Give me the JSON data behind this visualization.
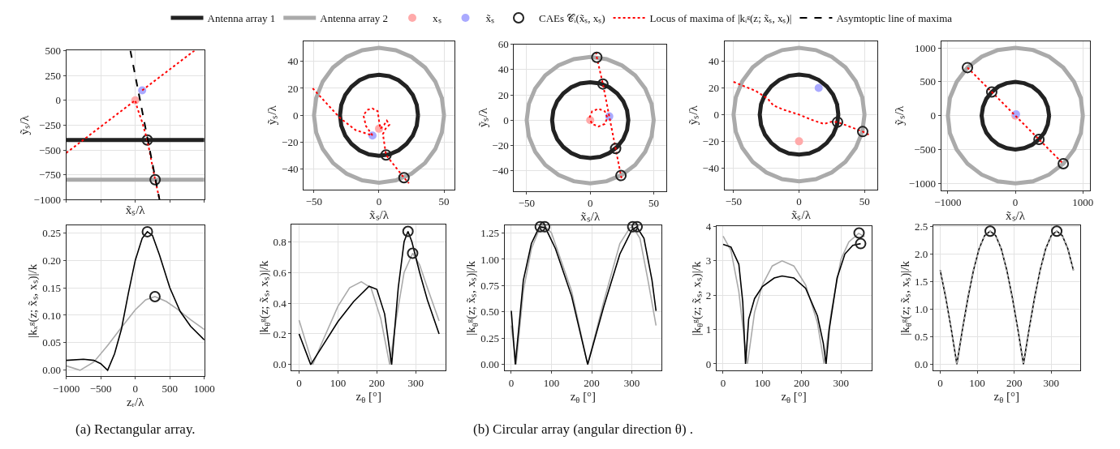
{
  "chart_data": [
    {
      "type": "line",
      "xlabel": "x̃ₛ/λ",
      "ylabel": "ỹₛ/λ",
      "xlim": [
        -1000,
        1000
      ],
      "ylim": [
        -1000,
        500
      ],
      "xticks": [
        {
          "value": -1000,
          "label": null
        },
        {
          "value": -500,
          "label": null
        },
        {
          "value": 0,
          "label": null
        },
        {
          "value": 500,
          "label": null
        },
        {
          "value": 1000,
          "label": null
        }
      ],
      "yticks": [
        -1000,
        -750,
        -500,
        -250,
        0,
        250,
        500
      ],
      "tick_labels": "y",
      "grid": true,
      "legend": "top",
      "series": [
        {
          "name": "Antenna array 1",
          "color": "#222222",
          "x": [
            -1000,
            1000
          ],
          "values": [
            -400,
            -400
          ]
        },
        {
          "name": "Antenna array 2",
          "color": "#aaaaaa",
          "x": [
            -1000,
            1000
          ],
          "values": [
            -800,
            -800
          ]
        },
        {
          "name": "xₛ",
          "type": "scatter",
          "marker": "circle",
          "color": "#ffaaaa",
          "x": [
            0
          ],
          "values": [
            0
          ]
        },
        {
          "name": "x̃ₛ",
          "type": "scatter",
          "marker": "circle",
          "color": "#aaaaff",
          "x": [
            100
          ],
          "values": [
            100
          ]
        },
        {
          "name": "CAEs 𝒞ᵢ(x̃ₛ, xₛ)",
          "type": "scatter",
          "marker": "circle",
          "color": "#222222",
          "x": [
            174,
            288
          ],
          "values": [
            -400,
            -800
          ]
        },
        {
          "name": "Locus of maxima of |kᵢᵍ(z; x̃ₛ, xₛ)|",
          "line_style": "dotted",
          "color": "#ff0000",
          "x": [
            -1000,
            0,
            30,
            100,
            174,
            288,
            351,
            null,
            100,
            856
          ],
          "values": [
            -530,
            0,
            -80,
            -220,
            -400,
            -800,
            -1000,
            null,
            100,
            500
          ]
        },
        {
          "name": "Asymtoptic line of maxima",
          "line_style": "dashed",
          "color": "#000000",
          "x": [
            -71,
            351
          ],
          "values": [
            500,
            -1000
          ]
        }
      ]
    },
    {
      "type": "line",
      "xlabel": "x̃ₛ/λ",
      "ylabel": "ỹₛ/λ",
      "xlim": [
        -58,
        58
      ],
      "ylim": [
        -55,
        55
      ],
      "xticks": [
        -50,
        0,
        50
      ],
      "yticks": [
        -40,
        -20,
        0,
        20,
        40
      ],
      "grid": true,
      "series": [
        {
          "color": "#aaaaaa",
          "x": [
            50,
            48.3,
            43.3,
            35.4,
            25,
            12.9,
            0,
            -12.9,
            -25,
            -35.4,
            -43.3,
            -48.3,
            -50,
            -48.3,
            -43.3,
            -35.4,
            -25,
            -12.9,
            0,
            12.9,
            25,
            35.4,
            43.3,
            48.3,
            50
          ],
          "values": [
            0,
            12.9,
            25,
            35.4,
            43.3,
            48.3,
            50,
            48.3,
            43.3,
            35.4,
            25,
            12.9,
            0,
            -12.9,
            -25,
            -35.4,
            -43.3,
            -48.3,
            -50,
            -48.3,
            -43.3,
            -35.4,
            -25,
            -12.9,
            0
          ]
        },
        {
          "color": "#222222",
          "x": [
            30,
            29,
            26,
            21.2,
            15,
            7.8,
            0,
            -7.8,
            -15,
            -21.2,
            -26,
            -29,
            -30,
            -29,
            -26,
            -21.2,
            -15,
            -7.8,
            0,
            7.8,
            15,
            21.2,
            26,
            29,
            30
          ],
          "values": [
            0,
            7.8,
            15,
            21.2,
            26,
            29,
            30,
            29,
            26,
            21.2,
            15,
            7.8,
            0,
            -7.8,
            -15,
            -21.2,
            -26,
            -29,
            -30,
            -29,
            -26,
            -21.2,
            -15,
            -7.8,
            0
          ]
        },
        {
          "type": "scatter",
          "marker": "circle",
          "color": "#ffaaaa",
          "x": [
            0
          ],
          "values": [
            -10
          ]
        },
        {
          "type": "scatter",
          "marker": "circle",
          "color": "#aaaaff",
          "x": [
            -5
          ],
          "values": [
            -15
          ]
        },
        {
          "line_style": "dotted",
          "color": "#ff0000",
          "x": [
            -51,
            -30,
            -18,
            -5,
            -10,
            -12,
            -9,
            -5,
            -1,
            0,
            1,
            4,
            6,
            8,
            5,
            3,
            5.4,
            19.2,
            23
          ],
          "values": [
            20,
            -2,
            -11,
            -15,
            -8,
            0,
            4,
            5,
            3,
            -4,
            -10,
            -7,
            -4,
            -7,
            -10,
            -14,
            -29.5,
            -46.3,
            -50.5
          ]
        },
        {
          "type": "scatter",
          "marker": "circle",
          "color": "#222222",
          "x": [
            5.4,
            19.2
          ],
          "values": [
            -29.5,
            -46.3
          ]
        }
      ]
    },
    {
      "type": "line",
      "xlabel": "x̃ₛ/λ",
      "ylabel": "ỹₛ/λ",
      "xlim": [
        -60,
        60
      ],
      "ylim": [
        -56,
        60
      ],
      "xticks": [
        -50,
        0,
        50
      ],
      "yticks": [
        -40,
        -20,
        0,
        20,
        40,
        60
      ],
      "grid": true,
      "series": [
        {
          "color": "#aaaaaa",
          "x": [
            50,
            48.3,
            43.3,
            35.4,
            25,
            12.9,
            0,
            -12.9,
            -25,
            -35.4,
            -43.3,
            -48.3,
            -50,
            -48.3,
            -43.3,
            -35.4,
            -25,
            -12.9,
            0,
            12.9,
            25,
            35.4,
            43.3,
            48.3,
            50
          ],
          "values": [
            0,
            12.9,
            25,
            35.4,
            43.3,
            48.3,
            50,
            48.3,
            43.3,
            35.4,
            25,
            12.9,
            0,
            -12.9,
            -25,
            -35.4,
            -43.3,
            -48.3,
            -50,
            -48.3,
            -43.3,
            -35.4,
            -25,
            -12.9,
            0
          ]
        },
        {
          "color": "#222222",
          "x": [
            30,
            29,
            26,
            21.2,
            15,
            7.8,
            0,
            -7.8,
            -15,
            -21.2,
            -26,
            -29,
            -30,
            -29,
            -26,
            -21.2,
            -15,
            -7.8,
            0,
            7.8,
            15,
            21.2,
            26,
            29,
            30
          ],
          "values": [
            0,
            7.8,
            15,
            21.2,
            26,
            29,
            30,
            29,
            26,
            21.2,
            15,
            7.8,
            0,
            -7.8,
            -15,
            -21.2,
            -26,
            -29,
            -30,
            -29,
            -26,
            -21.2,
            -15,
            -7.8,
            0
          ]
        },
        {
          "type": "scatter",
          "marker": "circle",
          "color": "#ffaaaa",
          "x": [
            0
          ],
          "values": [
            0
          ]
        },
        {
          "type": "scatter",
          "marker": "circle",
          "color": "#aaaaff",
          "x": [
            15
          ],
          "values": [
            3
          ]
        },
        {
          "line_style": "dotted",
          "color": "#ff0000",
          "x": [
            4.5,
            5.2,
            10,
            15,
            20,
            24.2,
            25,
            null,
            -0.5,
            1.5,
            6.5,
            11.5,
            13.5,
            11.5,
            6.5,
            1.5,
            0
          ],
          "values": [
            54,
            49.7,
            28.6,
            3,
            -22.4,
            -43.8,
            -47.4,
            null,
            2,
            7,
            9,
            7,
            2,
            -3,
            -5,
            -3,
            0
          ]
        },
        {
          "type": "scatter",
          "marker": "circle",
          "color": "#222222",
          "x": [
            5.2,
            10,
            20,
            24.2
          ],
          "values": [
            49.7,
            28.6,
            -22.4,
            -43.8
          ]
        }
      ]
    },
    {
      "type": "line",
      "xlabel": "x̃ₛ/λ",
      "ylabel": "ỹₛ/λ",
      "xlim": [
        -57,
        60
      ],
      "ylim": [
        -56,
        55
      ],
      "xticks": [
        -50,
        0,
        50
      ],
      "yticks": [
        -40,
        -20,
        0,
        20,
        40
      ],
      "grid": true,
      "series": [
        {
          "color": "#aaaaaa",
          "x": [
            50,
            48.3,
            43.3,
            35.4,
            25,
            12.9,
            0,
            -12.9,
            -25,
            -35.4,
            -43.3,
            -48.3,
            -50,
            -48.3,
            -43.3,
            -35.4,
            -25,
            -12.9,
            0,
            12.9,
            25,
            35.4,
            43.3,
            48.3,
            50
          ],
          "values": [
            0,
            12.9,
            25,
            35.4,
            43.3,
            48.3,
            50,
            48.3,
            43.3,
            35.4,
            25,
            12.9,
            0,
            -12.9,
            -25,
            -35.4,
            -43.3,
            -48.3,
            -50,
            -48.3,
            -43.3,
            -35.4,
            -25,
            -12.9,
            0
          ]
        },
        {
          "color": "#222222",
          "x": [
            30,
            29,
            26,
            21.2,
            15,
            7.8,
            0,
            -7.8,
            -15,
            -21.2,
            -26,
            -29,
            -30,
            -29,
            -26,
            -21.2,
            -15,
            -7.8,
            0,
            7.8,
            15,
            21.2,
            26,
            29,
            30
          ],
          "values": [
            0,
            7.8,
            15,
            21.2,
            26,
            29,
            30,
            29,
            26,
            21.2,
            15,
            7.8,
            0,
            -7.8,
            -15,
            -21.2,
            -26,
            -29,
            -30,
            -29,
            -26,
            -21.2,
            -15,
            -7.8,
            0
          ]
        },
        {
          "type": "scatter",
          "marker": "circle",
          "color": "#ffaaaa",
          "x": [
            0
          ],
          "values": [
            -20
          ]
        },
        {
          "type": "scatter",
          "marker": "circle",
          "color": "#aaaaff",
          "x": [
            15
          ],
          "values": [
            20
          ]
        },
        {
          "line_style": "dotted",
          "color": "#ff0000",
          "x": [
            -50,
            -33,
            -24,
            -19.5,
            -11.8,
            0,
            10,
            19,
            25,
            29.4,
            48.6,
            53.6
          ],
          "values": [
            24.5,
            17.7,
            12,
            6.8,
            3.7,
            0,
            -4,
            -7,
            -5.3,
            -5.6,
            -12.7,
            -15.2
          ]
        },
        {
          "type": "scatter",
          "marker": "circle",
          "color": "#222222",
          "x": [
            29.4,
            48.6
          ],
          "values": [
            -5.6,
            -12.7
          ]
        }
      ]
    },
    {
      "type": "line",
      "xlabel": "x̃ₛ/λ",
      "ylabel": "ỹₛ/λ",
      "xlim": [
        -1100,
        1100
      ],
      "ylim": [
        -1100,
        1100
      ],
      "xticks": [
        -1000,
        0,
        1000
      ],
      "yticks": [
        -1000,
        -500,
        0,
        500,
        1000
      ],
      "grid": true,
      "series": [
        {
          "color": "#aaaaaa",
          "x": [
            1000,
            970,
            870,
            710,
            500,
            260,
            0,
            -260,
            -500,
            -710,
            -870,
            -970,
            -1000,
            -970,
            -870,
            -710,
            -500,
            -260,
            0,
            260,
            500,
            710,
            870,
            970,
            1000
          ],
          "values": [
            0,
            260,
            500,
            710,
            870,
            970,
            1000,
            970,
            870,
            710,
            500,
            260,
            0,
            -260,
            -500,
            -710,
            -870,
            -970,
            -1000,
            -970,
            -870,
            -710,
            -500,
            -260,
            0
          ]
        },
        {
          "color": "#222222",
          "x": [
            500,
            480,
            430,
            350,
            250,
            130,
            0,
            -130,
            -250,
            -350,
            -430,
            -480,
            -500,
            -480,
            -430,
            -350,
            -250,
            -130,
            0,
            130,
            250,
            350,
            430,
            480,
            500
          ],
          "values": [
            0,
            130,
            250,
            350,
            430,
            480,
            500,
            480,
            430,
            350,
            250,
            130,
            0,
            -130,
            -250,
            -350,
            -430,
            -480,
            -500,
            -480,
            -430,
            -350,
            -250,
            -130,
            0
          ]
        },
        {
          "type": "scatter",
          "marker": "circle",
          "color": "#ffaaaa",
          "x": [
            0
          ],
          "values": [
            0
          ]
        },
        {
          "type": "scatter",
          "marker": "circle",
          "color": "#aaaaff",
          "x": [
            10
          ],
          "values": [
            20
          ]
        },
        {
          "line_style": "dotted",
          "color": "#ff0000",
          "x": [
            -710,
            710
          ],
          "values": [
            710,
            -710
          ]
        },
        {
          "type": "scatter",
          "marker": "circle",
          "color": "#222222",
          "x": [
            -710,
            -350,
            350,
            710
          ],
          "values": [
            710,
            350,
            -350,
            -710
          ]
        }
      ]
    },
    {
      "type": "line",
      "xlabel": "zᵣ/λ",
      "ylabel": "|kₓᵍ(z; x̃ₛ, xₛ)|/k",
      "xlim": [
        -1000,
        1000
      ],
      "ylim": [
        -0.011,
        0.263
      ],
      "xticks": [
        -1000,
        -500,
        0,
        500,
        1000
      ],
      "yticks": [
        {
          "value": 0,
          "label": "0.00"
        },
        0.05,
        {
          "value": 0.1,
          "label": "0.10"
        },
        0.15,
        {
          "value": 0.2,
          "label": "0.20"
        },
        0.25
      ],
      "grid": true,
      "annotations": [
        "(a) Rectangular array."
      ],
      "series": [
        {
          "color": "#aaaaaa",
          "x": [
            -1000,
            -800,
            -600,
            -400,
            -200,
            0,
            150,
            285,
            450,
            600,
            800,
            1000
          ],
          "values": [
            0.008,
            0.0,
            0.015,
            0.045,
            0.078,
            0.11,
            0.128,
            0.134,
            0.125,
            0.112,
            0.092,
            0.074
          ]
        },
        {
          "color": "#000000",
          "x": [
            -1000,
            -750,
            -600,
            -500,
            -400,
            -300,
            -200,
            -100,
            0,
            100,
            175,
            250,
            350,
            500,
            650,
            800,
            1000
          ],
          "values": [
            0.018,
            0.02,
            0.018,
            0.012,
            0.0,
            0.03,
            0.075,
            0.14,
            0.2,
            0.24,
            0.252,
            0.245,
            0.21,
            0.15,
            0.107,
            0.08,
            0.055
          ]
        },
        {
          "type": "scatter",
          "marker": "circle",
          "color": "#222222",
          "x": [
            175,
            285
          ],
          "values": [
            0.252,
            0.134
          ]
        }
      ]
    },
    {
      "type": "line",
      "xlabel": "z$_{θ}$ [°]",
      "ylabel": "|k$_{θ}$ᵍ(z; x̃ₛ, xₛ)|/k",
      "xlim": [
        -19,
        377
      ],
      "ylim": [
        -0.04,
        0.91
      ],
      "xticks": [
        0,
        100,
        200,
        300
      ],
      "yticks": [
        {
          "value": 0,
          "label": "0.0"
        },
        0.2,
        0.4,
        0.6,
        0.8
      ],
      "grid": true,
      "series": [
        {
          "color": "#aaaaaa",
          "x": [
            0,
            35,
            60,
            100,
            130,
            160,
            185,
            210,
            233,
            250,
            270,
            292,
            310,
            330,
            360
          ],
          "values": [
            0.29,
            0.0,
            0.15,
            0.38,
            0.5,
            0.54,
            0.5,
            0.3,
            0.0,
            0.3,
            0.6,
            0.725,
            0.65,
            0.5,
            0.285
          ]
        },
        {
          "color": "#000000",
          "x": [
            0,
            30,
            60,
            100,
            140,
            180,
            200,
            220,
            238,
            255,
            270,
            280,
            290,
            310,
            330,
            360
          ],
          "values": [
            0.2,
            0.0,
            0.12,
            0.28,
            0.41,
            0.51,
            0.49,
            0.33,
            0.0,
            0.5,
            0.8,
            0.868,
            0.8,
            0.6,
            0.42,
            0.2
          ]
        },
        {
          "type": "scatter",
          "marker": "circle",
          "color": "#222222",
          "x": [
            280,
            292
          ],
          "values": [
            0.868,
            0.725
          ]
        }
      ]
    },
    {
      "type": "line",
      "xlabel": "z$_{θ}$ [°]",
      "ylabel": "|k$_{θ}$ᵍ(z; x̃ₛ, xₛ)|/k",
      "xlim": [
        -17,
        374
      ],
      "ylim": [
        -0.06,
        1.32
      ],
      "xticks": [
        0,
        100,
        200,
        300
      ],
      "yticks": [
        {
          "value": 0,
          "label": "0.00"
        },
        0.25,
        {
          "value": 0.5,
          "label": "0.50"
        },
        0.75,
        {
          "value": 1,
          "label": "1.00"
        },
        1.25
      ],
      "grid": true,
      "annotations": [
        "(b) Circular array (angular direction θ) ."
      ],
      "series": [
        {
          "color": "#aaaaaa",
          "x": [
            0,
            12,
            30,
            50,
            70,
            85,
            100,
            150,
            190,
            230,
            270,
            295,
            302,
            320,
            340,
            360
          ],
          "values": [
            0.37,
            0.0,
            0.7,
            1.1,
            1.29,
            1.31,
            1.25,
            0.7,
            0.0,
            0.6,
            1.15,
            1.3,
            1.31,
            1.2,
            0.8,
            0.37
          ]
        },
        {
          "color": "#000000",
          "x": [
            0,
            10,
            30,
            50,
            70,
            85,
            110,
            150,
            190,
            230,
            270,
            300,
            312,
            330,
            350,
            360
          ],
          "values": [
            0.51,
            0.0,
            0.8,
            1.15,
            1.31,
            1.3,
            1.1,
            0.65,
            0.0,
            0.55,
            1.05,
            1.28,
            1.31,
            1.2,
            0.8,
            0.51
          ]
        },
        {
          "type": "scatter",
          "marker": "circle",
          "color": "#222222",
          "x": [
            72,
            83,
            302,
            313
          ],
          "values": [
            1.31,
            1.31,
            1.31,
            1.31
          ]
        }
      ]
    },
    {
      "type": "line",
      "xlabel": "z$_{θ}$ [°]",
      "ylabel": "|k$_{θ}$ᵍ(z; x̃ₛ, xₛ)|/k",
      "xlim": [
        -17,
        377
      ],
      "ylim": [
        -0.2,
        4
      ],
      "xticks": [
        0,
        100,
        200,
        300
      ],
      "yticks": [
        0,
        1,
        2,
        3,
        4
      ],
      "grid": true,
      "series": [
        {
          "color": "#aaaaaa",
          "x": [
            0,
            20,
            40,
            55,
            62,
            80,
            100,
            125,
            150,
            180,
            210,
            240,
            257,
            275,
            300,
            320,
            345,
            360
          ],
          "values": [
            3.72,
            3.3,
            2.1,
            0.6,
            0.0,
            1.5,
            2.3,
            2.85,
            3.0,
            2.85,
            2.3,
            1.2,
            0.0,
            1.5,
            3.05,
            3.55,
            3.8,
            3.7
          ]
        },
        {
          "color": "#000000",
          "x": [
            0,
            20,
            40,
            50,
            57,
            65,
            80,
            100,
            130,
            150,
            180,
            210,
            240,
            255,
            262,
            270,
            290,
            310,
            330,
            350
          ],
          "values": [
            3.48,
            3.4,
            2.9,
            1.8,
            0.0,
            1.3,
            1.9,
            2.25,
            2.5,
            2.56,
            2.5,
            2.2,
            1.4,
            0.6,
            0.0,
            1.0,
            2.5,
            3.2,
            3.45,
            3.5
          ]
        },
        {
          "type": "scatter",
          "marker": "circle",
          "color": "#222222",
          "x": [
            346,
            350
          ],
          "values": [
            3.81,
            3.5
          ]
        }
      ]
    },
    {
      "type": "line",
      "xlabel": "z$_{θ}$ [°]",
      "ylabel": "|k$_{θ}$ᵍ(z; x̃ₛ, xₛ)|/k",
      "xlim": [
        -19,
        378
      ],
      "ylim": [
        -0.12,
        2.52
      ],
      "xticks": [
        0,
        100,
        200,
        300
      ],
      "yticks": [
        {
          "value": 0,
          "label": "0.0"
        },
        0.5,
        {
          "value": 1,
          "label": "1.0"
        },
        1.5,
        {
          "value": 2,
          "label": "2.0"
        },
        2.5
      ],
      "grid": true,
      "series": [
        {
          "color": "#000000",
          "x": [
            0,
            15,
            30,
            45,
            60,
            75,
            90,
            105,
            120,
            135,
            150,
            165,
            180,
            195,
            210,
            225,
            240,
            255,
            270,
            285,
            300,
            315,
            330,
            345,
            360
          ],
          "values": [
            1.71,
            1.21,
            0.63,
            0,
            0.63,
            1.21,
            1.71,
            2.1,
            2.34,
            2.42,
            2.34,
            2.1,
            1.71,
            1.21,
            0.63,
            0,
            0.63,
            1.21,
            1.71,
            2.1,
            2.34,
            2.42,
            2.34,
            2.1,
            1.71
          ]
        },
        {
          "line_style": "dotted",
          "color": "#aaaaaa",
          "x": [
            0,
            15,
            30,
            45,
            60,
            75,
            90,
            105,
            120,
            135,
            150,
            165,
            180,
            195,
            210,
            225,
            240,
            255,
            270,
            285,
            300,
            315,
            330,
            345,
            360
          ],
          "values": [
            1.71,
            1.21,
            0.63,
            0,
            0.63,
            1.21,
            1.71,
            2.1,
            2.34,
            2.42,
            2.34,
            2.1,
            1.71,
            1.21,
            0.63,
            0,
            0.63,
            1.21,
            1.71,
            2.1,
            2.34,
            2.42,
            2.34,
            2.1,
            1.71
          ]
        },
        {
          "type": "scatter",
          "marker": "circle",
          "color": "#222222",
          "x": [
            135,
            315
          ],
          "values": [
            2.42,
            2.42
          ]
        }
      ]
    }
  ]
}
